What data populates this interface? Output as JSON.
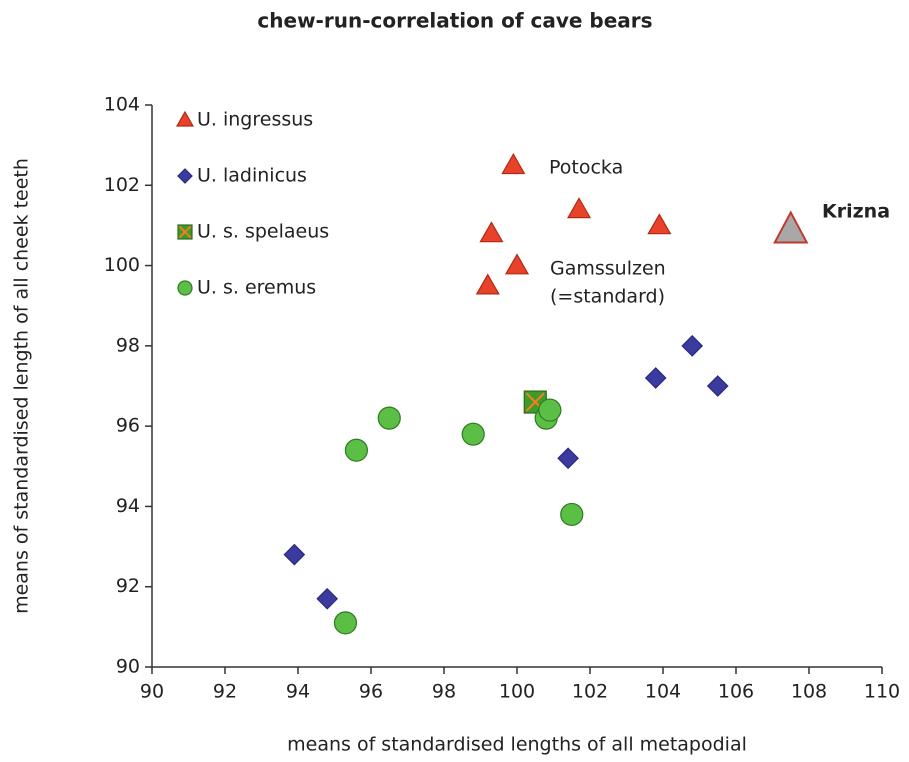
{
  "chart_data": {
    "type": "scatter",
    "title": "chew-run-correlation of cave bears",
    "xlabel": "means of standardised lengths of all metapodial",
    "ylabel": "means of standardised length of all cheek teeth",
    "xlim": [
      90,
      110
    ],
    "xticks": [
      90,
      92,
      94,
      96,
      98,
      100,
      102,
      104,
      106,
      108,
      110
    ],
    "ylim": [
      90,
      104
    ],
    "yticks": [
      90,
      92,
      94,
      96,
      98,
      100,
      102,
      104
    ],
    "legend": "upper left",
    "series": [
      {
        "name": "U. ingressus",
        "color": "#e8432a",
        "marker": "triangle",
        "x": [
          99.9,
          101.7,
          103.9,
          99.3,
          100.0,
          99.2
        ],
        "values": [
          102.5,
          101.4,
          101.0,
          100.8,
          100.0,
          99.5
        ]
      },
      {
        "name": "U. ladinicus",
        "color": "#3b3a9e",
        "marker": "diamond",
        "x": [
          93.9,
          94.8,
          101.4,
          103.8,
          104.8,
          105.5
        ],
        "values": [
          92.8,
          91.7,
          95.2,
          97.2,
          98.0,
          97.0
        ]
      },
      {
        "name": "U. s. spelaeus",
        "color": "#3f9a2b",
        "marker": "square",
        "x": [
          100.5
        ],
        "values": [
          96.6
        ]
      },
      {
        "name": "U. s. eremus",
        "color": "#5cbf45",
        "marker": "circle",
        "x": [
          95.3,
          95.6,
          96.5,
          98.8,
          100.8,
          100.9,
          101.5
        ],
        "values": [
          91.1,
          95.4,
          96.2,
          95.8,
          96.2,
          96.4,
          93.8
        ]
      }
    ],
    "highlight": {
      "label": "Krizna",
      "color": "#a8a8a8",
      "x": 107.5,
      "y": 100.9
    },
    "annotations": [
      "Potocka",
      "Gamssulzen",
      "(=standard)"
    ]
  }
}
